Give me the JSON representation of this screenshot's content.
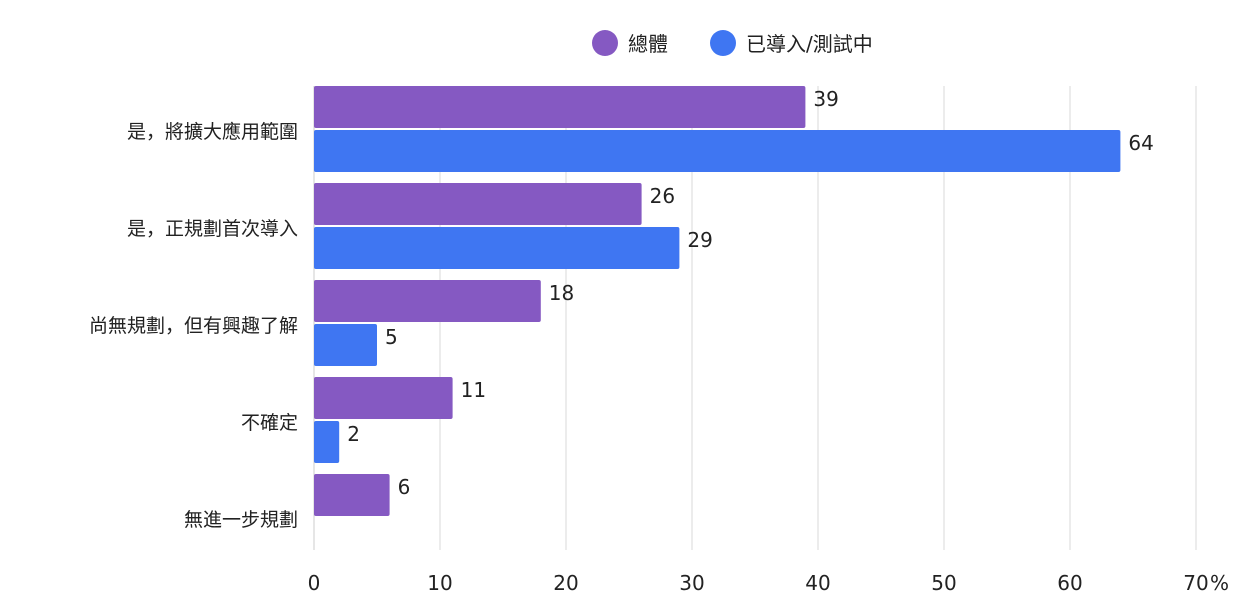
{
  "chart_data": {
    "type": "bar",
    "orientation": "horizontal",
    "categories": [
      "是，將擴大應用範圍",
      "是，正規劃首次導入",
      "尚無規劃，但有興趣了解",
      "不確定",
      "無進一步規劃"
    ],
    "series": [
      {
        "name": "總體",
        "values": [
          39,
          26,
          18,
          11,
          6
        ],
        "color": "#8559c2"
      },
      {
        "name": "已導入/測試中",
        "values": [
          64,
          29,
          5,
          2,
          null
        ],
        "color": "#3f76f2"
      }
    ],
    "x_ticks": [
      "0",
      "10",
      "20",
      "30",
      "40",
      "50",
      "60",
      "70"
    ],
    "x_unit": "%",
    "xlim": [
      0,
      70
    ],
    "grid": true,
    "legend_position": "top"
  }
}
